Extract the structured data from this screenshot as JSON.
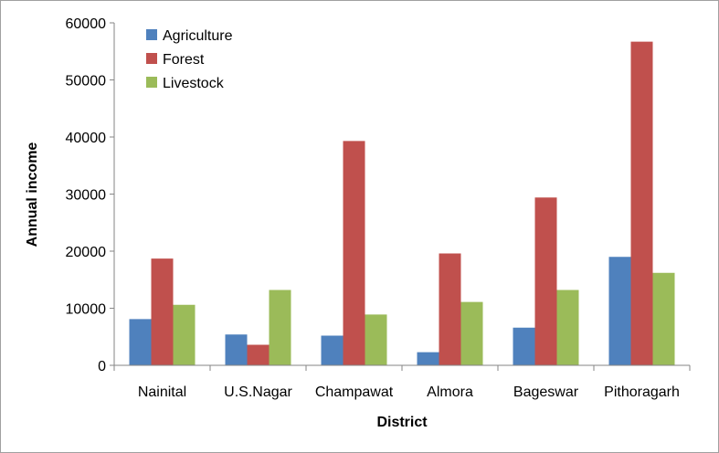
{
  "chart_data": {
    "type": "bar",
    "title": "",
    "xlabel": "District",
    "ylabel": "Annual income",
    "ylim": [
      0,
      60000
    ],
    "yticks": [
      0,
      10000,
      20000,
      30000,
      40000,
      50000,
      60000
    ],
    "grid": false,
    "legend": "top-left",
    "categories": [
      "Nainital",
      "U.S.Nagar",
      "Champawat",
      "Almora",
      "Bageswar",
      "Pithoragarh"
    ],
    "series": [
      {
        "name": "Agriculture",
        "color": "#4F81BD",
        "values": [
          8100,
          5400,
          5200,
          2300,
          6600,
          19000
        ]
      },
      {
        "name": "Forest",
        "color": "#C0504D",
        "values": [
          18700,
          3600,
          39300,
          19600,
          29400,
          56700
        ]
      },
      {
        "name": "Livestock",
        "color": "#9BBB59",
        "values": [
          10600,
          13200,
          8900,
          11100,
          13200,
          16200
        ]
      }
    ]
  }
}
